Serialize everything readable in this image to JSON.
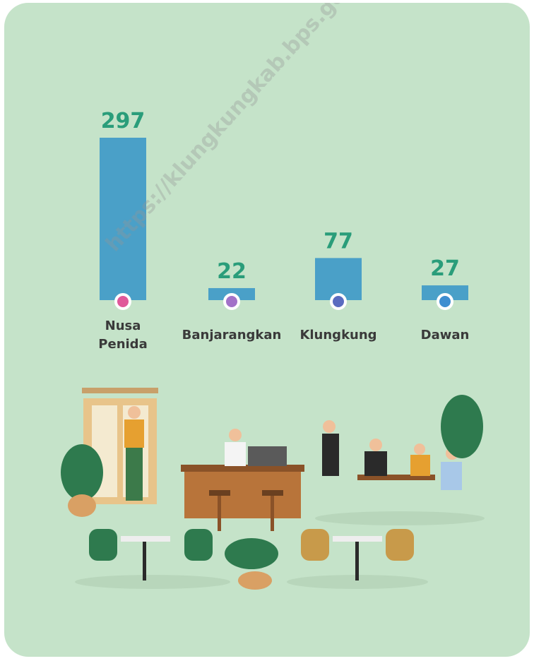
{
  "chart_data": {
    "type": "bar",
    "categories": [
      "Nusa Penida",
      "Banjarangkan",
      "Klungkung",
      "Dawan"
    ],
    "values": [
      297,
      22,
      77,
      27
    ],
    "color": "#4aa0c8",
    "dot_colors": [
      "#e0589a",
      "#a272c8",
      "#5a6cc0",
      "#3e8ed0"
    ],
    "label_color": "#2a9d7a",
    "watermark": "https://klungkungkab.bps.go.id"
  }
}
